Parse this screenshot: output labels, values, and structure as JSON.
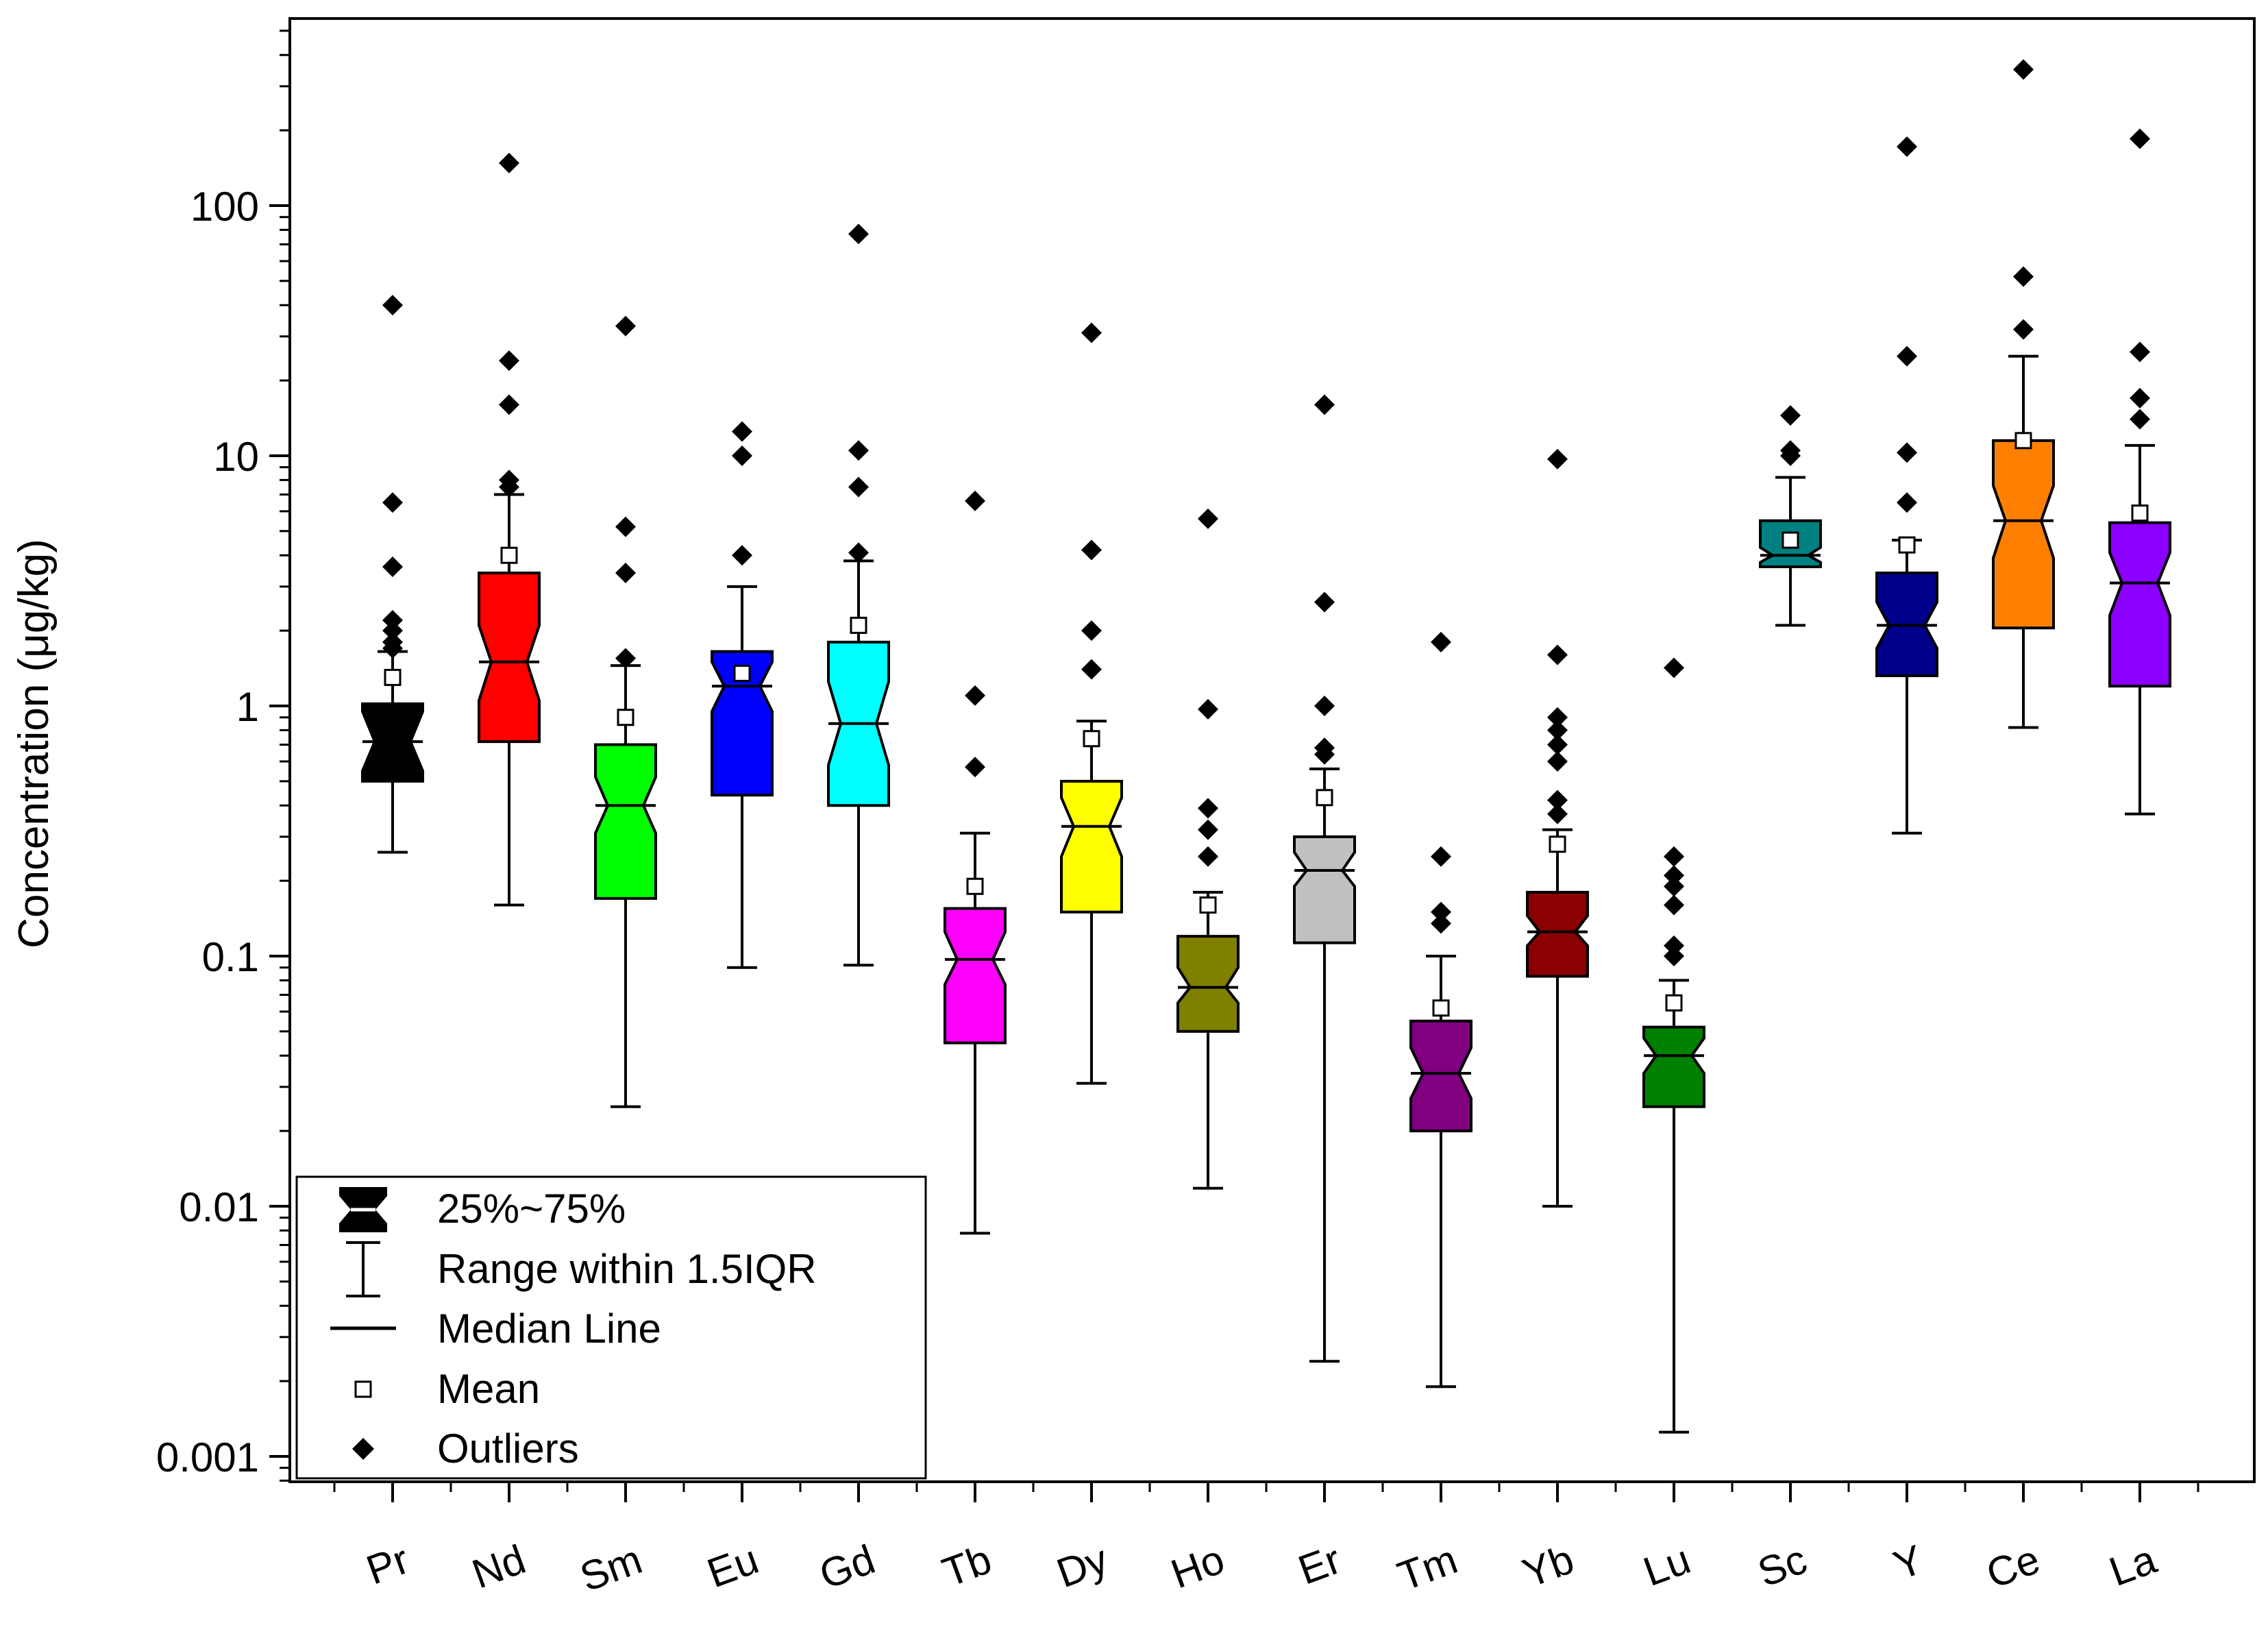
{
  "chart_data": {
    "type": "box",
    "scale": "log",
    "ylabel": "Concentration (μg/kg)",
    "xlabel": "",
    "ylim": [
      0.0006,
      500
    ],
    "yticks": [
      {
        "value": 0.001,
        "label": "0.001"
      },
      {
        "value": 0.01,
        "label": "0.01"
      },
      {
        "value": 0.1,
        "label": "0.1"
      },
      {
        "value": 1,
        "label": "1"
      },
      {
        "value": 10,
        "label": "10"
      },
      {
        "value": 100,
        "label": "100"
      }
    ],
    "categories": [
      "Pr",
      "Nd",
      "Sm",
      "Eu",
      "Gd",
      "Tb",
      "Dy",
      "Ho",
      "Er",
      "Tm",
      "Yb",
      "Lu",
      "Sc",
      "Y",
      "Ce",
      "La"
    ],
    "boxes": [
      {
        "name": "Pr",
        "color": "#000000",
        "q1": 0.5,
        "q3": 1.02,
        "median": 0.72,
        "notch_lo": 0.55,
        "notch_hi": 0.95,
        "whisker_lo": 0.26,
        "whisker_hi": 1.65,
        "mean": 1.3,
        "outliers": [
          40,
          6.5,
          3.6,
          2.2,
          2.0,
          1.8,
          1.7
        ]
      },
      {
        "name": "Nd",
        "color": "#FF0000",
        "q1": 0.72,
        "q3": 3.4,
        "median": 1.5,
        "notch_lo": 1.05,
        "notch_hi": 2.1,
        "whisker_lo": 0.16,
        "whisker_hi": 7.0,
        "mean": 4.0,
        "outliers": [
          148,
          24,
          16,
          8,
          7.5
        ]
      },
      {
        "name": "Sm",
        "color": "#00FF00",
        "q1": 0.17,
        "q3": 0.7,
        "median": 0.4,
        "notch_lo": 0.31,
        "notch_hi": 0.52,
        "whisker_lo": 0.025,
        "whisker_hi": 1.45,
        "mean": 0.9,
        "outliers": [
          33,
          5.2,
          3.4,
          1.55
        ]
      },
      {
        "name": "Eu",
        "color": "#0000FF",
        "q1": 0.44,
        "q3": 1.65,
        "median": 1.2,
        "notch_lo": 0.95,
        "notch_hi": 1.5,
        "whisker_lo": 0.09,
        "whisker_hi": 3.0,
        "mean": 1.35,
        "outliers": [
          12.5,
          10,
          4.0
        ]
      },
      {
        "name": "Gd",
        "color": "#00FFFF",
        "q1": 0.4,
        "q3": 1.8,
        "median": 0.85,
        "notch_lo": 0.58,
        "notch_hi": 1.25,
        "whisker_lo": 0.092,
        "whisker_hi": 3.8,
        "mean": 2.1,
        "outliers": [
          77,
          10.5,
          7.5,
          4.1
        ]
      },
      {
        "name": "Tb",
        "color": "#FF00FF",
        "q1": 0.045,
        "q3": 0.155,
        "median": 0.097,
        "notch_lo": 0.077,
        "notch_hi": 0.125,
        "whisker_lo": 0.0078,
        "whisker_hi": 0.31,
        "mean": 0.19,
        "outliers": [
          6.6,
          1.1,
          0.57
        ]
      },
      {
        "name": "Dy",
        "color": "#FFFF00",
        "q1": 0.15,
        "q3": 0.5,
        "median": 0.33,
        "notch_lo": 0.25,
        "notch_hi": 0.43,
        "whisker_lo": 0.031,
        "whisker_hi": 0.87,
        "mean": 0.74,
        "outliers": [
          31,
          4.2,
          2.0,
          1.4
        ]
      },
      {
        "name": "Ho",
        "color": "#808000",
        "q1": 0.05,
        "q3": 0.12,
        "median": 0.075,
        "notch_lo": 0.065,
        "notch_hi": 0.09,
        "whisker_lo": 0.0118,
        "whisker_hi": 0.18,
        "mean": 0.16,
        "outliers": [
          5.6,
          0.97,
          0.39,
          0.32,
          0.25
        ]
      },
      {
        "name": "Er",
        "color": "#C0C0C0",
        "q1": 0.113,
        "q3": 0.3,
        "median": 0.22,
        "notch_lo": 0.19,
        "notch_hi": 0.26,
        "whisker_lo": 0.0024,
        "whisker_hi": 0.56,
        "mean": 0.43,
        "outliers": [
          16,
          2.6,
          1.0,
          0.68,
          0.64
        ]
      },
      {
        "name": "Tm",
        "color": "#800080",
        "q1": 0.02,
        "q3": 0.055,
        "median": 0.034,
        "notch_lo": 0.027,
        "notch_hi": 0.043,
        "whisker_lo": 0.0019,
        "whisker_hi": 0.1,
        "mean": 0.062,
        "outliers": [
          1.8,
          0.25,
          0.15,
          0.135
        ]
      },
      {
        "name": "Yb",
        "color": "#8B0000",
        "q1": 0.083,
        "q3": 0.18,
        "median": 0.125,
        "notch_lo": 0.11,
        "notch_hi": 0.145,
        "whisker_lo": 0.01,
        "whisker_hi": 0.32,
        "mean": 0.28,
        "outliers": [
          9.7,
          1.6,
          0.9,
          0.8,
          0.7,
          0.6,
          0.42,
          0.37
        ]
      },
      {
        "name": "Lu",
        "color": "#008000",
        "q1": 0.025,
        "q3": 0.052,
        "median": 0.04,
        "notch_lo": 0.034,
        "notch_hi": 0.047,
        "whisker_lo": 0.00125,
        "whisker_hi": 0.08,
        "mean": 0.065,
        "outliers": [
          1.42,
          0.25,
          0.21,
          0.19,
          0.16,
          0.11,
          0.1
        ]
      },
      {
        "name": "Sc",
        "color": "#008080",
        "q1": 3.6,
        "q3": 5.5,
        "median": 4.0,
        "notch_lo": 3.75,
        "notch_hi": 4.3,
        "whisker_lo": 2.1,
        "whisker_hi": 8.2,
        "mean": 4.6,
        "outliers": [
          14.5,
          10.5,
          10.0
        ]
      },
      {
        "name": "Y",
        "color": "#00008B",
        "q1": 1.32,
        "q3": 3.4,
        "median": 2.1,
        "notch_lo": 1.7,
        "notch_hi": 2.6,
        "whisker_lo": 0.31,
        "whisker_hi": 4.6,
        "mean": 4.4,
        "outliers": [
          172,
          25,
          10.3,
          6.5
        ]
      },
      {
        "name": "Ce",
        "color": "#FF8000",
        "q1": 2.05,
        "q3": 11.5,
        "median": 5.5,
        "notch_lo": 3.9,
        "notch_hi": 7.6,
        "whisker_lo": 0.82,
        "whisker_hi": 25,
        "mean": 11.5,
        "outliers": [
          350,
          52,
          32
        ]
      },
      {
        "name": "La",
        "color": "#8B00FF",
        "q1": 1.2,
        "q3": 5.4,
        "median": 3.1,
        "notch_lo": 2.3,
        "notch_hi": 4.1,
        "whisker_lo": 0.37,
        "whisker_hi": 11,
        "mean": 5.9,
        "outliers": [
          185,
          26,
          17,
          14
        ]
      }
    ],
    "legend": {
      "position": "bottom-left",
      "entries": [
        {
          "symbol": "box",
          "label": "25%~75%"
        },
        {
          "symbol": "whisker",
          "label": "Range within 1.5IQR"
        },
        {
          "symbol": "line",
          "label": "Median Line"
        },
        {
          "symbol": "open-square",
          "label": "Mean"
        },
        {
          "symbol": "diamond",
          "label": "Outliers"
        }
      ]
    }
  }
}
